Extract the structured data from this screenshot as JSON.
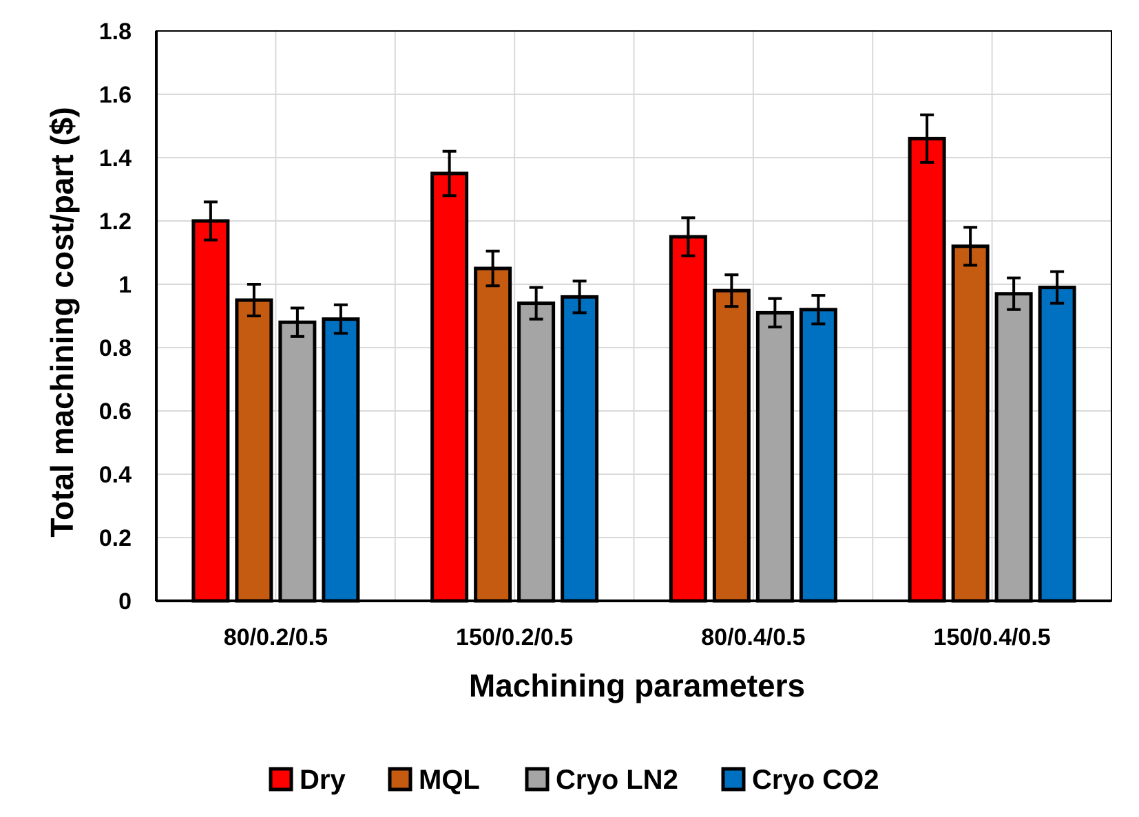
{
  "chart_data": {
    "type": "bar",
    "title": "",
    "xlabel": "Machining parameters",
    "ylabel": "Total machining cost/part ($)",
    "ylim": [
      0,
      1.8
    ],
    "yticks": [
      "0",
      "0.2",
      "0.4",
      "0.6",
      "0.8",
      "1",
      "1.2",
      "1.4",
      "1.6",
      "1.8"
    ],
    "grid": true,
    "legend_position": "bottom",
    "categories": [
      "80/0.2/0.5",
      "150/0.2/0.5",
      "80/0.4/0.5",
      "150/0.4/0.5"
    ],
    "series": [
      {
        "name": "Dry",
        "color": "#ff0000",
        "values": [
          1.2,
          1.35,
          1.15,
          1.46
        ],
        "errors": [
          0.06,
          0.07,
          0.06,
          0.075
        ]
      },
      {
        "name": "MQL",
        "color": "#c55a11",
        "values": [
          0.95,
          1.05,
          0.98,
          1.12
        ],
        "errors": [
          0.05,
          0.055,
          0.05,
          0.06
        ]
      },
      {
        "name": "Cryo LN2",
        "color": "#a5a5a5",
        "values": [
          0.88,
          0.94,
          0.91,
          0.97
        ],
        "errors": [
          0.045,
          0.05,
          0.045,
          0.05
        ]
      },
      {
        "name": "Cryo CO2",
        "color": "#0070c0",
        "values": [
          0.89,
          0.96,
          0.92,
          0.99
        ],
        "errors": [
          0.045,
          0.05,
          0.045,
          0.05
        ]
      }
    ]
  }
}
